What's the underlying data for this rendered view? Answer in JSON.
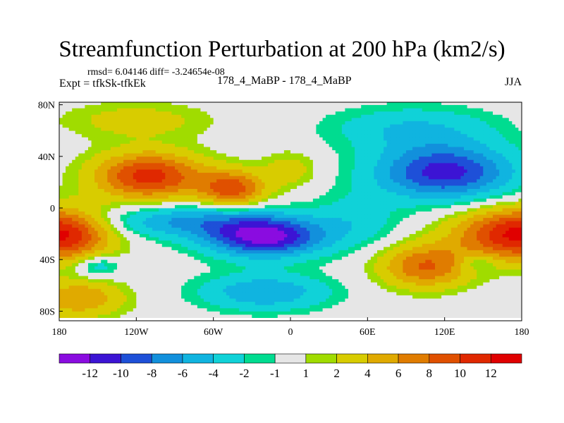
{
  "chart_data": {
    "type": "heatmap",
    "title": "Streamfunction Perturbation at 200 hPa (km2/s)",
    "subtitle_left_top": "rmsd= 6.04146 diff= -3.24654e-08",
    "subtitle_left": "Expt = tfkSk-tfkEk",
    "subtitle_center": "178_4_MaBP - 178_4_MaBP",
    "subtitle_right": "JJA",
    "xlim": [
      -180,
      180
    ],
    "ylim": [
      -90,
      90
    ],
    "x_ticks": [
      {
        "v": -180,
        "label": "180"
      },
      {
        "v": -120,
        "label": "120W"
      },
      {
        "v": -60,
        "label": "60W"
      },
      {
        "v": 0,
        "label": "0"
      },
      {
        "v": 60,
        "label": "60E"
      },
      {
        "v": 120,
        "label": "120E"
      },
      {
        "v": 180,
        "label": "180"
      }
    ],
    "y_ticks": [
      {
        "v": 80,
        "label": "80N"
      },
      {
        "v": 40,
        "label": "40N"
      },
      {
        "v": 0,
        "label": "0"
      },
      {
        "v": -40,
        "label": "40S"
      },
      {
        "v": -80,
        "label": "80S"
      }
    ],
    "levels": [
      -12,
      -10,
      -8,
      -6,
      -4,
      -2,
      -1,
      1,
      2,
      4,
      6,
      8,
      10,
      12
    ],
    "level_labels": [
      "-12",
      "-10",
      "-8",
      "-6",
      "-4",
      "-2",
      "-1",
      "1",
      "2",
      "4",
      "6",
      "8",
      "10",
      "12"
    ],
    "colors": [
      "#8a0ce0",
      "#3c14d4",
      "#1e50d8",
      "#1290dc",
      "#10b4e0",
      "#10d2d8",
      "#00dc90",
      "#e6e6e6",
      "#a0dc00",
      "#d8cc00",
      "#e0aa00",
      "#e07c00",
      "#e05000",
      "#e02800",
      "#e00000"
    ],
    "features": [
      {
        "lon": -20,
        "lat": -22,
        "amp": -13,
        "slon": 32,
        "slat": 11
      },
      {
        "lon": -85,
        "lat": -10,
        "amp": -6,
        "slon": 45,
        "slat": 9
      },
      {
        "lon": -180,
        "lat": -20,
        "amp": 13,
        "slon": 28,
        "slat": 14
      },
      {
        "lon": 180,
        "lat": -20,
        "amp": 13,
        "slon": 35,
        "slat": 14
      },
      {
        "lon": -110,
        "lat": 25,
        "amp": 11,
        "slon": 30,
        "slat": 13
      },
      {
        "lon": -45,
        "lat": 15,
        "amp": 9,
        "slon": 18,
        "slat": 10
      },
      {
        "lon": 120,
        "lat": 28,
        "amp": -11,
        "slon": 38,
        "slat": 15
      },
      {
        "lon": 95,
        "lat": 62,
        "amp": -4,
        "slon": 45,
        "slat": 12
      },
      {
        "lon": 105,
        "lat": -45,
        "amp": 8,
        "slon": 25,
        "slat": 12
      },
      {
        "lon": -20,
        "lat": -65,
        "amp": -6,
        "slon": 35,
        "slat": 10
      },
      {
        "lon": -150,
        "lat": -45,
        "amp": -4,
        "slon": 12,
        "slat": 6
      },
      {
        "lon": 145,
        "lat": -42,
        "amp": -3,
        "slon": 10,
        "slat": 5
      },
      {
        "lon": -120,
        "lat": 68,
        "amp": 3,
        "slon": 40,
        "slat": 10
      },
      {
        "lon": 0,
        "lat": 30,
        "amp": 3,
        "slon": 15,
        "slat": 10
      },
      {
        "lon": -165,
        "lat": -70,
        "amp": 6,
        "slon": 25,
        "slat": 10
      },
      {
        "lon": 50,
        "lat": -10,
        "amp": -3,
        "slon": 25,
        "slat": 15
      }
    ]
  }
}
